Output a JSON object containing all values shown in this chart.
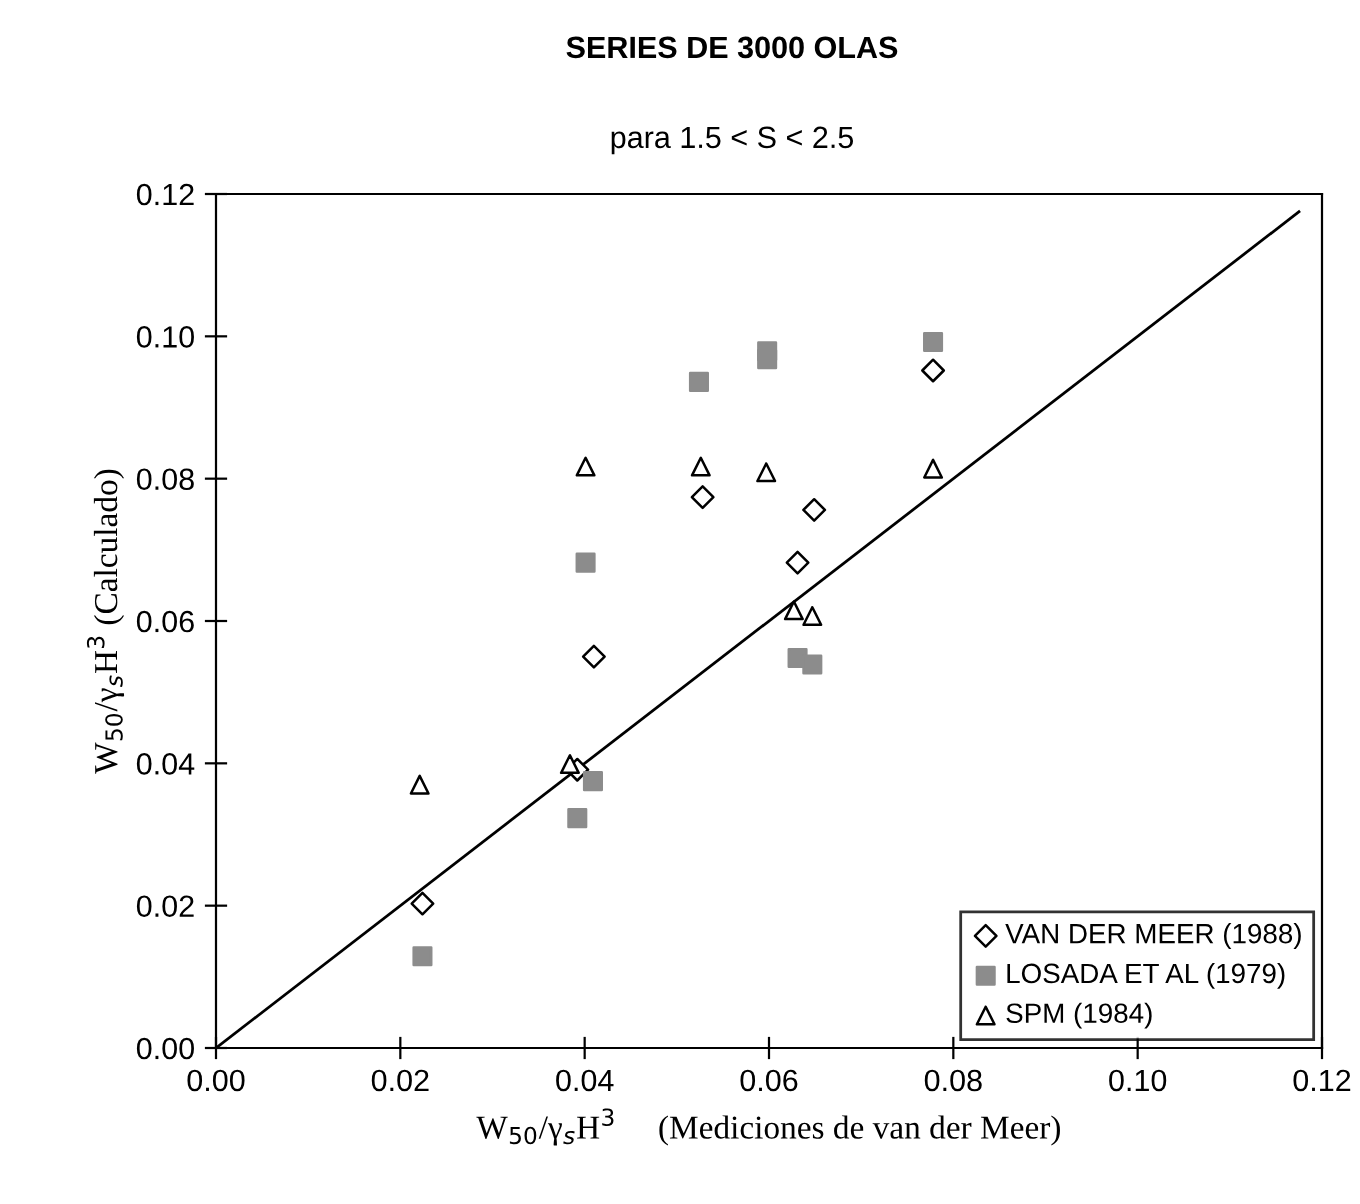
{
  "chart_data": {
    "type": "scatter",
    "title": "SERIES DE 3000 OLAS",
    "subtitle": "para 1.5 < S < 2.5",
    "xlabel": "W$_{50}$/γ$_{s}$H$^{3}$     (Mediciones de van der Meer)",
    "ylabel": "W$_{50}$/γ$_{s}$H$^{3}$ (Calculado)",
    "xlim": [
      0,
      0.12
    ],
    "ylim": [
      0,
      0.12
    ],
    "xticks": [
      {
        "value": 0,
        "label": "0.00"
      },
      {
        "value": 0.02,
        "label": "0.02"
      },
      {
        "value": 0.04,
        "label": "0.04"
      },
      {
        "value": 0.06,
        "label": "0.06"
      },
      {
        "value": 0.08,
        "label": "0.08"
      },
      {
        "value": 0.1,
        "label": "0.10"
      },
      {
        "value": 0.12,
        "label": "0.12"
      }
    ],
    "yticks": [
      {
        "value": 0,
        "label": "0.00"
      },
      {
        "value": 0.02,
        "label": "0.02"
      },
      {
        "value": 0.04,
        "label": "0.04"
      },
      {
        "value": 0.06,
        "label": "0.06"
      },
      {
        "value": 0.08,
        "label": "0.08"
      },
      {
        "value": 0.1,
        "label": "0.10"
      },
      {
        "value": 0.12,
        "label": "0.12"
      }
    ],
    "grid": false,
    "legend": "bottom right",
    "series": [
      {
        "name": "VAN DER MEER (1988)",
        "color": "#000000",
        "marker": "diamond",
        "x": [
          0.0224,
          0.0392,
          0.041,
          0.0528,
          0.0649,
          0.0631,
          0.0778
        ],
        "values": [
          0.0203,
          0.0391,
          0.055,
          0.0774,
          0.0756,
          0.0682,
          0.0952
        ]
      },
      {
        "name": "LOSADA ET AL (1979)",
        "color": "#8c8c8c",
        "marker": "square",
        "x": [
          0.0224,
          0.0392,
          0.0409,
          0.0401,
          0.0524,
          0.0598,
          0.0598,
          0.0631,
          0.0647,
          0.0778
        ],
        "values": [
          0.0129,
          0.0323,
          0.0375,
          0.0682,
          0.0936,
          0.0979,
          0.0968,
          0.0548,
          0.0539,
          0.0992
        ]
      },
      {
        "name": "SPM (1984)",
        "color": "#000000",
        "marker": "triangle",
        "x": [
          0.0221,
          0.0384,
          0.0401,
          0.0526,
          0.0597,
          0.0627,
          0.0647,
          0.0778
        ],
        "values": [
          0.037,
          0.0399,
          0.0817,
          0.0817,
          0.0809,
          0.0615,
          0.0607,
          0.0814
        ]
      },
      {
        "type": "line",
        "color": "#000000",
        "line_style": "solid",
        "x": [
          0,
          0.1175
        ],
        "values": [
          0,
          0.1175
        ]
      }
    ]
  }
}
